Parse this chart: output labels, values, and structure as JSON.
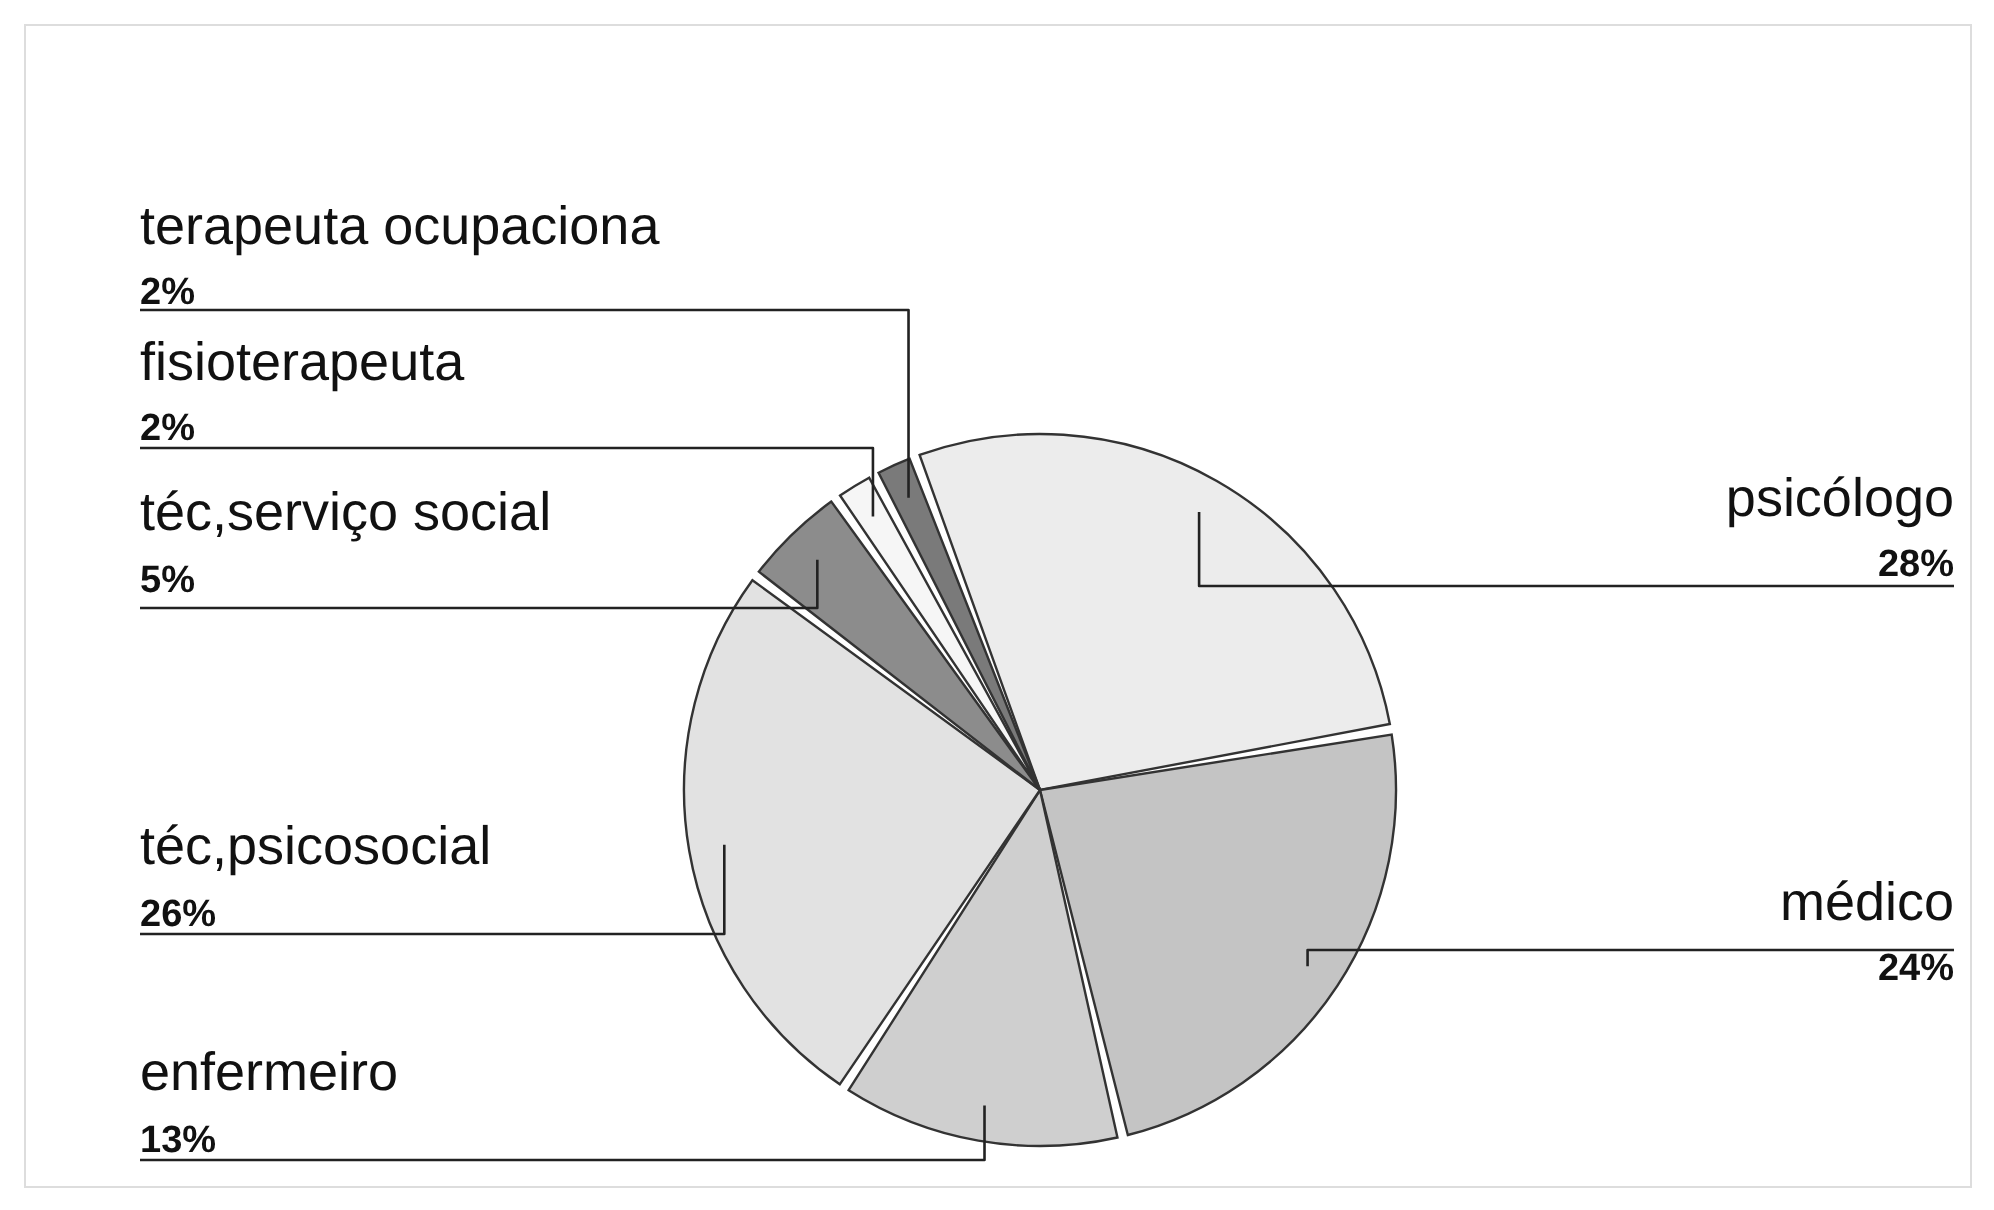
{
  "chart_data": {
    "type": "pie",
    "categories": [
      "psicólogo",
      "médico",
      "enfermeiro",
      "téc,psicosocial",
      "téc,serviço social",
      "fisioterapeuta",
      "terapeuta ocupaciona"
    ],
    "values": [
      28,
      24,
      13,
      26,
      5,
      2,
      2
    ],
    "value_labels": [
      "28%",
      "24%",
      "13%",
      "26%",
      "5%",
      "2%",
      "2%"
    ],
    "colors": [
      "#ececec",
      "#c4c4c4",
      "#cfcfcf",
      "#e2e2e2",
      "#8c8c8c",
      "#f6f6f6",
      "#7a7a7a"
    ]
  }
}
